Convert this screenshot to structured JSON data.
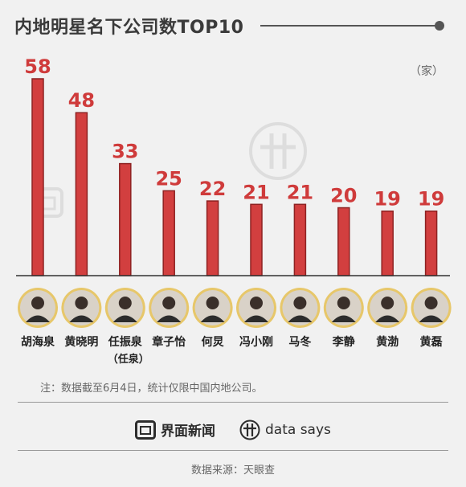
{
  "title": "内地明星名下公司数TOP10",
  "unit": "（家）",
  "note": "注：数据截至6月4日，统计仅限中国内地公司。",
  "brand": {
    "jiemian": "界面新闻",
    "datasays": "data says"
  },
  "source": "数据来源：天眼查",
  "colors": {
    "bar": "#d23f3f",
    "bar_edge": "#8e2222",
    "value_label": "#cf3b3b",
    "avatar_ring": "#e7c76a"
  },
  "chart_data": {
    "type": "bar",
    "categories": [
      "胡海泉",
      "黄晓明",
      "任振泉",
      "章子怡",
      "何炅",
      "冯小刚",
      "马冬",
      "李静",
      "黄渤",
      "黄磊"
    ],
    "category_sublabels": [
      "",
      "",
      "（任泉）",
      "",
      "",
      "",
      "",
      "",
      "",
      ""
    ],
    "values": [
      58,
      48,
      33,
      25,
      22,
      21,
      21,
      20,
      19,
      19
    ],
    "value_labels": [
      "58",
      "48",
      "33",
      "25",
      "22",
      "21",
      "21",
      "20",
      "19",
      "19"
    ],
    "title": "内地明星名下公司数TOP10",
    "ylabel": "（家）",
    "ylim": [
      0,
      58
    ],
    "grid": false,
    "legend": "none"
  }
}
